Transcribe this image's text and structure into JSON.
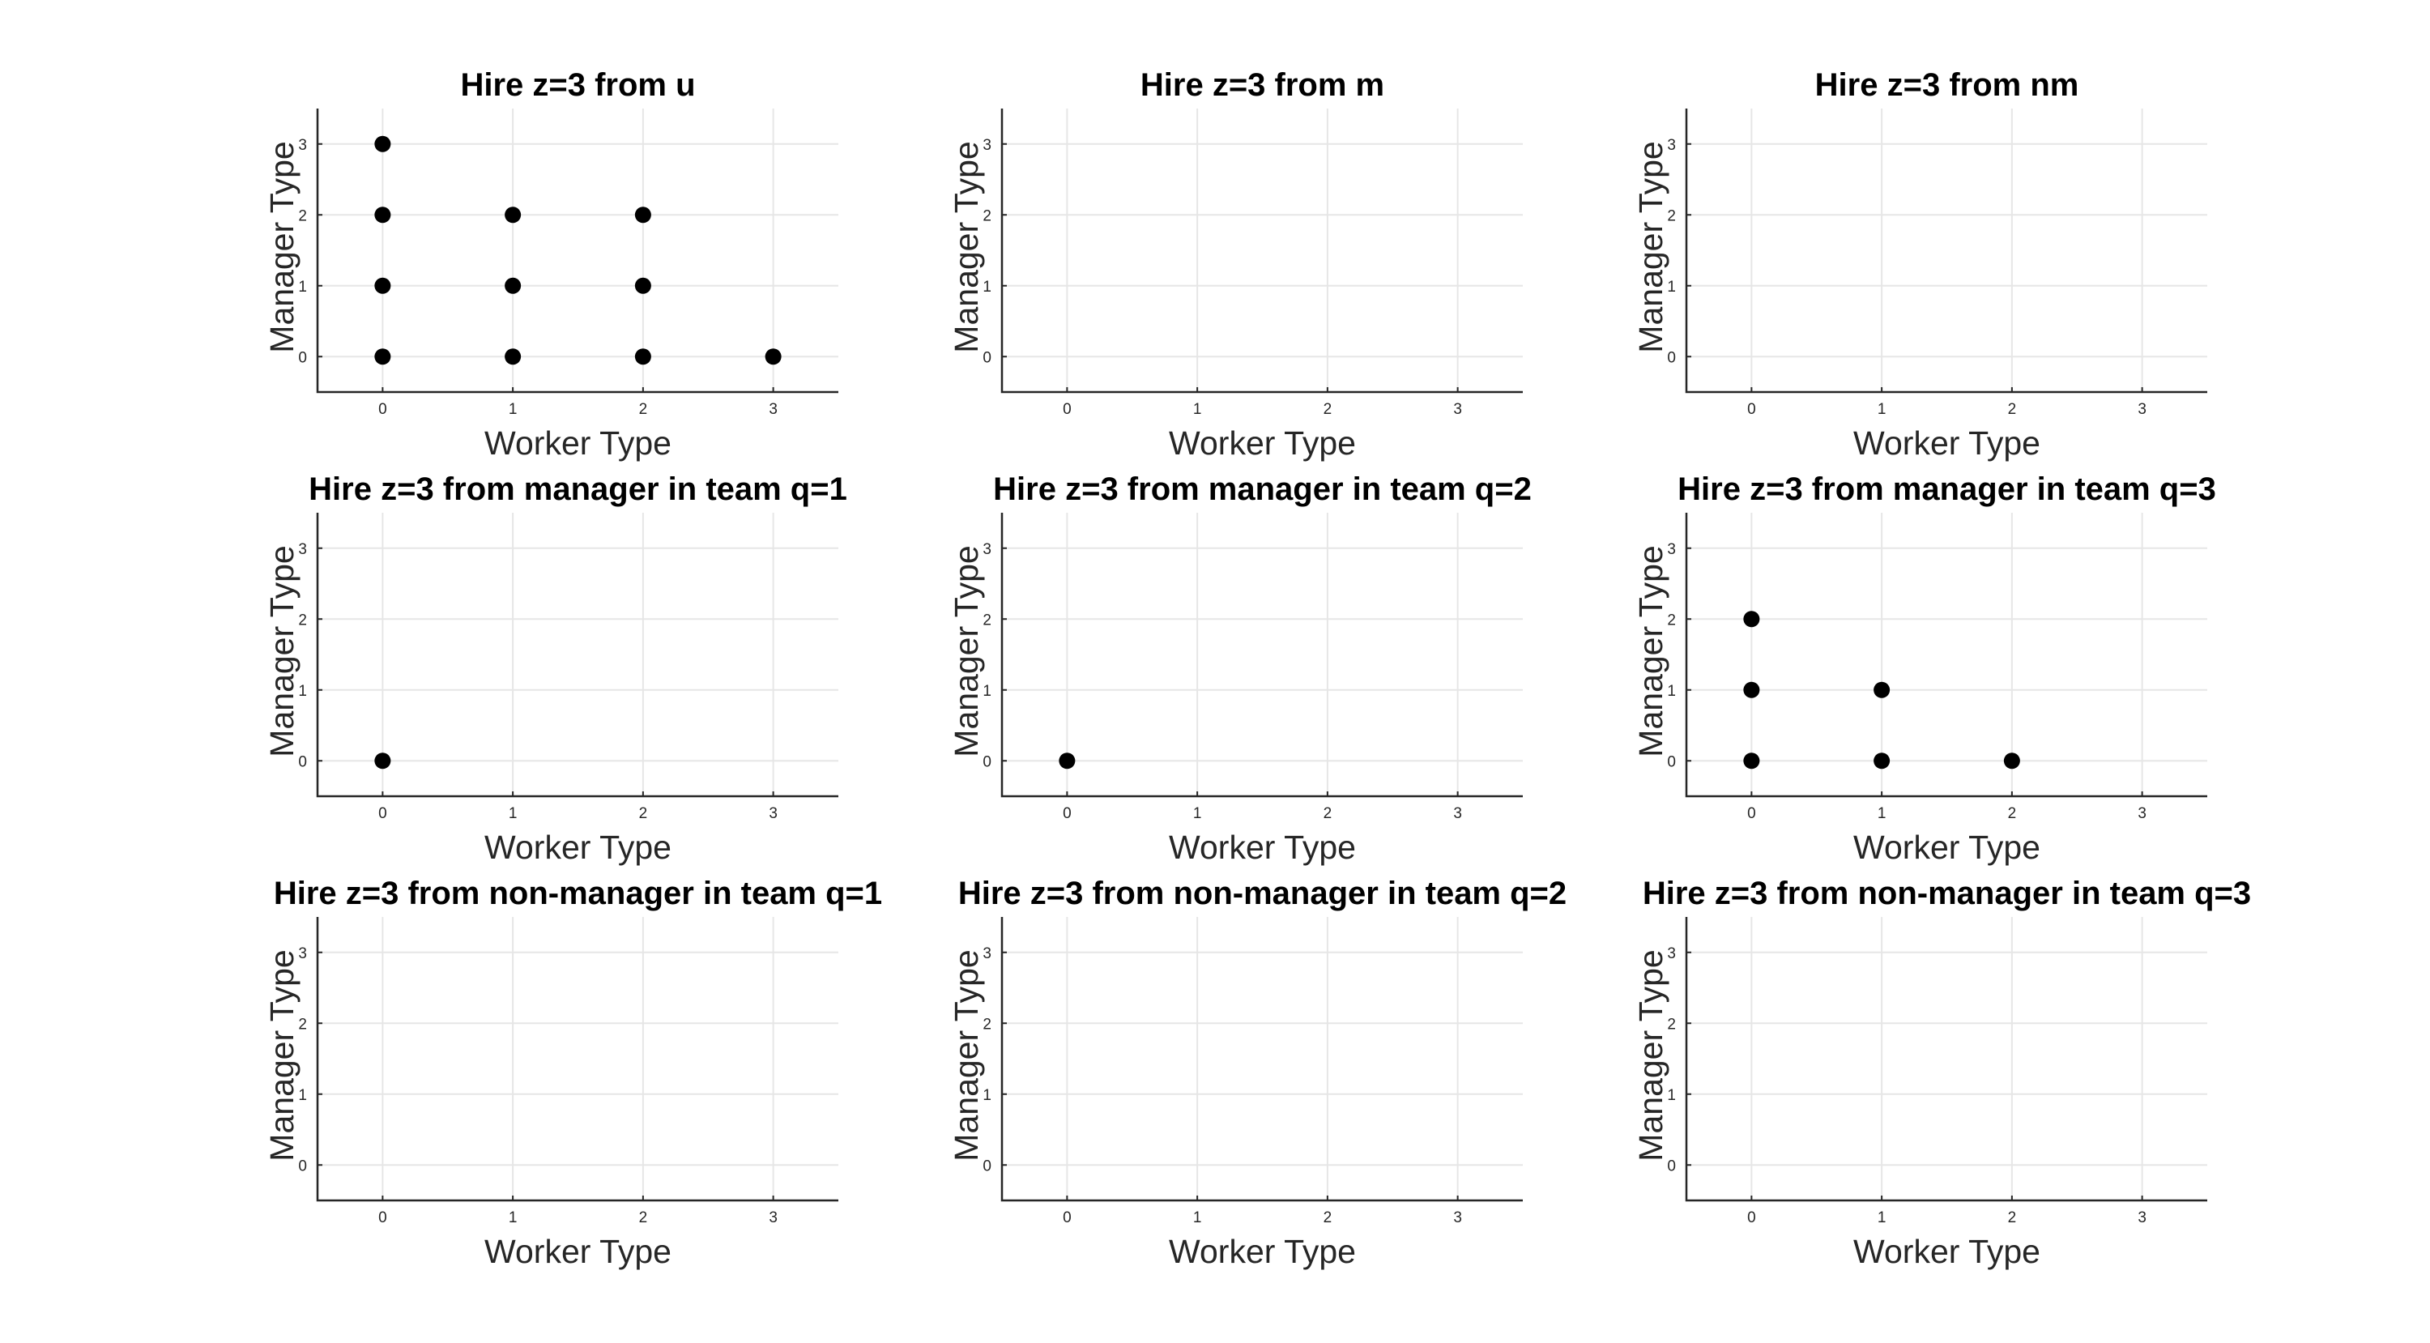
{
  "chart_data": [
    {
      "type": "scatter",
      "title": "Hire z=3 from u",
      "xlabel": "Worker Type",
      "ylabel": "Manager Type",
      "xlim": [
        -0.5,
        3.5
      ],
      "ylim": [
        -0.5,
        3.5
      ],
      "xticks": [
        "0",
        "1",
        "2",
        "3"
      ],
      "yticks": [
        "0",
        "1",
        "2",
        "3"
      ],
      "grid": true,
      "points": [
        [
          0,
          0
        ],
        [
          0,
          1
        ],
        [
          0,
          2
        ],
        [
          0,
          3
        ],
        [
          1,
          0
        ],
        [
          1,
          1
        ],
        [
          1,
          2
        ],
        [
          2,
          0
        ],
        [
          2,
          1
        ],
        [
          2,
          2
        ],
        [
          3,
          0
        ]
      ]
    },
    {
      "type": "scatter",
      "title": "Hire z=3 from m",
      "xlabel": "Worker Type",
      "ylabel": "Manager Type",
      "xlim": [
        -0.5,
        3.5
      ],
      "ylim": [
        -0.5,
        3.5
      ],
      "xticks": [
        "0",
        "1",
        "2",
        "3"
      ],
      "yticks": [
        "0",
        "1",
        "2",
        "3"
      ],
      "grid": true,
      "points": []
    },
    {
      "type": "scatter",
      "title": "Hire z=3 from nm",
      "xlabel": "Worker Type",
      "ylabel": "Manager Type",
      "xlim": [
        -0.5,
        3.5
      ],
      "ylim": [
        -0.5,
        3.5
      ],
      "xticks": [
        "0",
        "1",
        "2",
        "3"
      ],
      "yticks": [
        "0",
        "1",
        "2",
        "3"
      ],
      "grid": true,
      "points": []
    },
    {
      "type": "scatter",
      "title": "Hire z=3 from manager in team q=1",
      "xlabel": "Worker Type",
      "ylabel": "Manager Type",
      "xlim": [
        -0.5,
        3.5
      ],
      "ylim": [
        -0.5,
        3.5
      ],
      "xticks": [
        "0",
        "1",
        "2",
        "3"
      ],
      "yticks": [
        "0",
        "1",
        "2",
        "3"
      ],
      "grid": true,
      "points": [
        [
          0,
          0
        ]
      ]
    },
    {
      "type": "scatter",
      "title": "Hire z=3 from manager in team q=2",
      "xlabel": "Worker Type",
      "ylabel": "Manager Type",
      "xlim": [
        -0.5,
        3.5
      ],
      "ylim": [
        -0.5,
        3.5
      ],
      "xticks": [
        "0",
        "1",
        "2",
        "3"
      ],
      "yticks": [
        "0",
        "1",
        "2",
        "3"
      ],
      "grid": true,
      "points": [
        [
          0,
          0
        ]
      ]
    },
    {
      "type": "scatter",
      "title": "Hire z=3 from manager in team q=3",
      "xlabel": "Worker Type",
      "ylabel": "Manager Type",
      "xlim": [
        -0.5,
        3.5
      ],
      "ylim": [
        -0.5,
        3.5
      ],
      "xticks": [
        "0",
        "1",
        "2",
        "3"
      ],
      "yticks": [
        "0",
        "1",
        "2",
        "3"
      ],
      "grid": true,
      "points": [
        [
          0,
          0
        ],
        [
          0,
          1
        ],
        [
          0,
          2
        ],
        [
          1,
          0
        ],
        [
          1,
          1
        ],
        [
          2,
          0
        ]
      ]
    },
    {
      "type": "scatter",
      "title": "Hire z=3 from non-manager in team q=1",
      "xlabel": "Worker Type",
      "ylabel": "Manager Type",
      "xlim": [
        -0.5,
        3.5
      ],
      "ylim": [
        -0.5,
        3.5
      ],
      "xticks": [
        "0",
        "1",
        "2",
        "3"
      ],
      "yticks": [
        "0",
        "1",
        "2",
        "3"
      ],
      "grid": true,
      "points": []
    },
    {
      "type": "scatter",
      "title": "Hire z=3 from non-manager in team q=2",
      "xlabel": "Worker Type",
      "ylabel": "Manager Type",
      "xlim": [
        -0.5,
        3.5
      ],
      "ylim": [
        -0.5,
        3.5
      ],
      "xticks": [
        "0",
        "1",
        "2",
        "3"
      ],
      "yticks": [
        "0",
        "1",
        "2",
        "3"
      ],
      "grid": true,
      "points": []
    },
    {
      "type": "scatter",
      "title": "Hire z=3 from non-manager in team q=3",
      "xlabel": "Worker Type",
      "ylabel": "Manager Type",
      "xlim": [
        -0.5,
        3.5
      ],
      "ylim": [
        -0.5,
        3.5
      ],
      "xticks": [
        "0",
        "1",
        "2",
        "3"
      ],
      "yticks": [
        "0",
        "1",
        "2",
        "3"
      ],
      "grid": true,
      "points": []
    }
  ]
}
